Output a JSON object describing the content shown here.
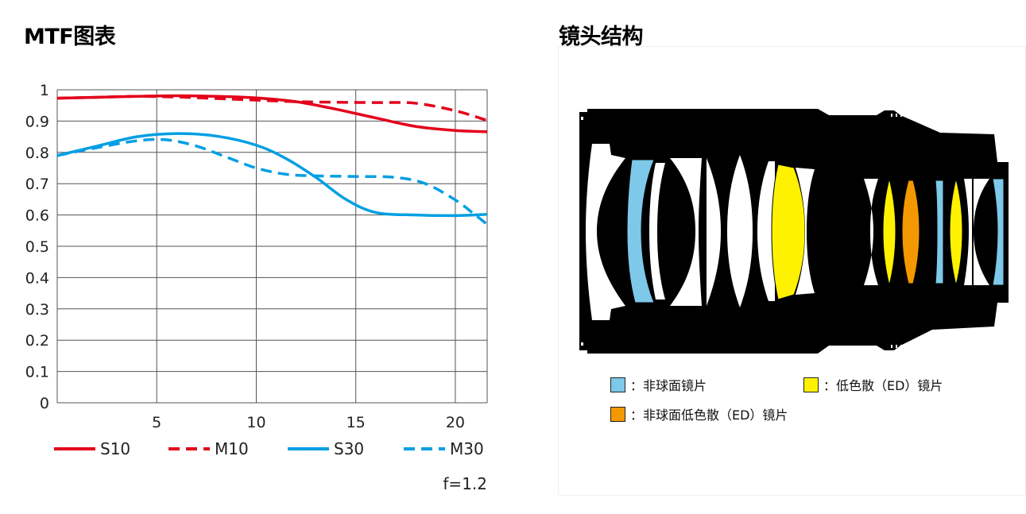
{
  "mtf_title": "MTF图表",
  "lens_title": "镜头结构",
  "aperture_label": "f=1.2",
  "chart_data": {
    "type": "line",
    "title": "MTF图表",
    "xlim": [
      0,
      21.6
    ],
    "ylim": [
      0,
      1
    ],
    "x_ticks": [
      5,
      10,
      15,
      20
    ],
    "y_ticks": [
      "0",
      "0.1",
      "0.2",
      "0.3",
      "0.4",
      "0.5",
      "0.6",
      "0.7",
      "0.8",
      "0.9",
      "1"
    ],
    "grid": true,
    "legend_position": "bottom",
    "series": [
      {
        "name": "S10",
        "color": "#e3001b",
        "dash": false,
        "points": [
          [
            0,
            0.973
          ],
          [
            2,
            0.976
          ],
          [
            4,
            0.979
          ],
          [
            6,
            0.981
          ],
          [
            8,
            0.979
          ],
          [
            10,
            0.974
          ],
          [
            12,
            0.962
          ],
          [
            14,
            0.938
          ],
          [
            16,
            0.91
          ],
          [
            18,
            0.883
          ],
          [
            20,
            0.87
          ],
          [
            21.6,
            0.866
          ]
        ]
      },
      {
        "name": "M10",
        "color": "#e3001b",
        "dash": true,
        "points": [
          [
            0,
            0.973
          ],
          [
            2,
            0.976
          ],
          [
            4,
            0.979
          ],
          [
            6,
            0.977
          ],
          [
            8,
            0.972
          ],
          [
            10,
            0.967
          ],
          [
            12,
            0.962
          ],
          [
            14,
            0.96
          ],
          [
            16,
            0.959
          ],
          [
            18,
            0.957
          ],
          [
            20,
            0.933
          ],
          [
            21.6,
            0.902
          ]
        ]
      },
      {
        "name": "S30",
        "color": "#009fe3",
        "dash": false,
        "points": [
          [
            0,
            0.79
          ],
          [
            2,
            0.82
          ],
          [
            4,
            0.85
          ],
          [
            6,
            0.86
          ],
          [
            8,
            0.852
          ],
          [
            10,
            0.823
          ],
          [
            11.5,
            0.78
          ],
          [
            13,
            0.72
          ],
          [
            14.5,
            0.65
          ],
          [
            16,
            0.608
          ],
          [
            18,
            0.6
          ],
          [
            20,
            0.598
          ],
          [
            21.6,
            0.602
          ]
        ]
      },
      {
        "name": "M30",
        "color": "#009fe3",
        "dash": true,
        "points": [
          [
            0,
            0.79
          ],
          [
            2,
            0.815
          ],
          [
            4,
            0.837
          ],
          [
            5.5,
            0.84
          ],
          [
            7,
            0.82
          ],
          [
            8.5,
            0.785
          ],
          [
            10,
            0.75
          ],
          [
            11.5,
            0.73
          ],
          [
            13,
            0.725
          ],
          [
            15,
            0.723
          ],
          [
            17,
            0.72
          ],
          [
            18.5,
            0.7
          ],
          [
            20,
            0.648
          ],
          [
            21,
            0.6
          ],
          [
            21.6,
            0.57
          ]
        ]
      }
    ]
  },
  "lens_legend": [
    {
      "label": "：非球面镜片",
      "color": "#7ec8e9"
    },
    {
      "label": "：低色散（ED）镜片",
      "color": "#fff200"
    },
    {
      "label": "：非球面低色散（ED）镜片",
      "color": "#f39800"
    }
  ],
  "lens_colors": {
    "body": "#000000",
    "glass": "#ffffff",
    "aspherical": "#7ec8e9",
    "ed": "#fff200",
    "aspherical_ed": "#f39800"
  }
}
